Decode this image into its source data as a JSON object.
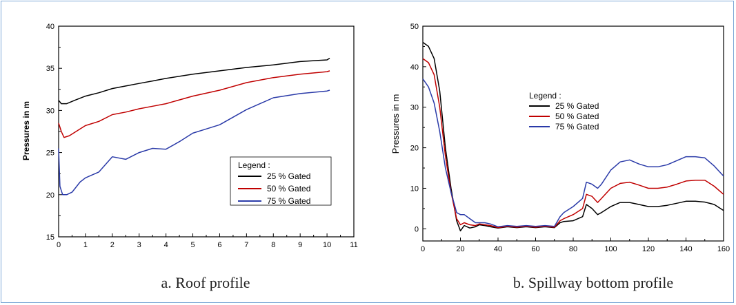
{
  "chart_data": [
    {
      "type": "line",
      "caption": "a. Roof profile",
      "ylabel": "Pressures in m",
      "xlabel": "",
      "xlim": [
        0,
        11
      ],
      "ylim": [
        15,
        40
      ],
      "xticks": [
        0,
        1,
        2,
        3,
        4,
        5,
        6,
        7,
        8,
        9,
        10,
        11
      ],
      "yticks": [
        15,
        20,
        25,
        30,
        35,
        40
      ],
      "legend_title": "Legend :",
      "legend_position": "lower-right",
      "grid": false,
      "series": [
        {
          "name": "25 % Gated",
          "color": "#000000",
          "x": [
            0,
            0.1,
            0.3,
            0.6,
            1.0,
            1.5,
            2.0,
            2.5,
            3.0,
            3.5,
            4.0,
            5.0,
            6.0,
            7.0,
            8.0,
            9.0,
            10.0,
            10.1
          ],
          "y": [
            31.2,
            30.8,
            30.8,
            31.2,
            31.7,
            32.1,
            32.6,
            32.9,
            33.2,
            33.5,
            33.8,
            34.3,
            34.7,
            35.1,
            35.4,
            35.8,
            36.0,
            36.2
          ]
        },
        {
          "name": "50 % Gated",
          "color": "#c00000",
          "x": [
            0,
            0.1,
            0.2,
            0.4,
            0.7,
            1.0,
            1.5,
            2.0,
            2.5,
            3.0,
            3.5,
            4.0,
            5.0,
            6.0,
            7.0,
            8.0,
            9.0,
            10.0,
            10.1
          ],
          "y": [
            28.5,
            27.5,
            26.8,
            27.0,
            27.6,
            28.2,
            28.7,
            29.5,
            29.8,
            30.2,
            30.5,
            30.8,
            31.7,
            32.4,
            33.3,
            33.9,
            34.3,
            34.6,
            34.7
          ]
        },
        {
          "name": "75  % Gated",
          "color": "#2a3aa8",
          "x": [
            0,
            0.05,
            0.15,
            0.3,
            0.5,
            0.8,
            1.0,
            1.5,
            2.0,
            2.5,
            3.0,
            3.5,
            4.0,
            4.5,
            5.0,
            5.5,
            6.0,
            7.0,
            8.0,
            9.0,
            10.0,
            10.1
          ],
          "y": [
            25.5,
            21.0,
            20.0,
            20.0,
            20.3,
            21.5,
            22.0,
            22.7,
            24.5,
            24.2,
            25.0,
            25.5,
            25.4,
            26.3,
            27.3,
            27.8,
            28.3,
            30.1,
            31.5,
            32.0,
            32.3,
            32.4
          ]
        }
      ]
    },
    {
      "type": "line",
      "caption": "b. Spillway bottom profile",
      "ylabel": "Pressures in m",
      "xlabel": "",
      "xlim": [
        0,
        160
      ],
      "ylim": [
        -3,
        50
      ],
      "xticks": [
        0,
        20,
        40,
        60,
        80,
        100,
        120,
        140,
        160
      ],
      "yticks": [
        0,
        10,
        20,
        30,
        40,
        50
      ],
      "legend_title": "Legend :",
      "legend_position": "upper-center",
      "grid": false,
      "series": [
        {
          "name": "25 % Gated",
          "color": "#000000",
          "x": [
            0,
            3,
            6,
            9,
            12,
            15,
            18,
            20,
            22,
            25,
            28,
            30,
            33,
            36,
            40,
            45,
            50,
            55,
            60,
            65,
            70,
            73,
            75,
            80,
            85,
            87,
            90,
            93,
            95,
            100,
            105,
            110,
            115,
            120,
            125,
            130,
            135,
            140,
            145,
            150,
            155,
            160
          ],
          "y": [
            46,
            45,
            42,
            34,
            20,
            10,
            2,
            -0.5,
            0.8,
            0.2,
            0.5,
            1.0,
            0.8,
            0.5,
            0.2,
            0.5,
            0.3,
            0.5,
            0.3,
            0.5,
            0.3,
            1.5,
            1.8,
            2.0,
            3.0,
            6.0,
            5.0,
            3.5,
            4.0,
            5.5,
            6.5,
            6.5,
            6.0,
            5.5,
            5.5,
            5.8,
            6.3,
            6.8,
            6.8,
            6.6,
            6.0,
            4.5
          ]
        },
        {
          "name": "50 % Gated",
          "color": "#c00000",
          "x": [
            0,
            3,
            6,
            9,
            12,
            15,
            18,
            20,
            22,
            25,
            28,
            30,
            33,
            36,
            40,
            45,
            50,
            55,
            60,
            65,
            70,
            73,
            75,
            80,
            85,
            87,
            90,
            93,
            95,
            100,
            105,
            110,
            115,
            120,
            125,
            130,
            135,
            140,
            145,
            150,
            155,
            160
          ],
          "y": [
            42,
            41,
            38,
            30,
            18,
            9,
            2.5,
            1.0,
            1.5,
            1.0,
            0.8,
            1.2,
            1.0,
            0.8,
            0.3,
            0.6,
            0.4,
            0.6,
            0.4,
            0.6,
            0.4,
            2.0,
            2.5,
            3.5,
            5.0,
            8.5,
            8.0,
            6.5,
            7.5,
            10.0,
            11.2,
            11.5,
            10.8,
            10.0,
            10.0,
            10.3,
            11.0,
            11.8,
            12.0,
            12.0,
            10.5,
            8.5
          ]
        },
        {
          "name": "75 % Gated",
          "color": "#2a3aa8",
          "x": [
            0,
            3,
            6,
            9,
            12,
            15,
            18,
            20,
            22,
            25,
            28,
            30,
            33,
            36,
            40,
            45,
            50,
            55,
            60,
            65,
            70,
            73,
            75,
            80,
            85,
            87,
            90,
            93,
            95,
            100,
            105,
            110,
            115,
            120,
            125,
            130,
            135,
            140,
            145,
            150,
            155,
            160
          ],
          "y": [
            37,
            35,
            31,
            24,
            15,
            9,
            4,
            3.5,
            3.5,
            2.5,
            1.5,
            1.5,
            1.5,
            1.2,
            0.5,
            0.8,
            0.6,
            0.8,
            0.6,
            0.8,
            0.6,
            3.0,
            4.0,
            5.5,
            7.5,
            11.5,
            11.0,
            10.0,
            11.0,
            14.5,
            16.5,
            17.0,
            16.0,
            15.3,
            15.3,
            15.8,
            16.8,
            17.8,
            17.8,
            17.5,
            15.5,
            13.0
          ]
        }
      ]
    }
  ]
}
